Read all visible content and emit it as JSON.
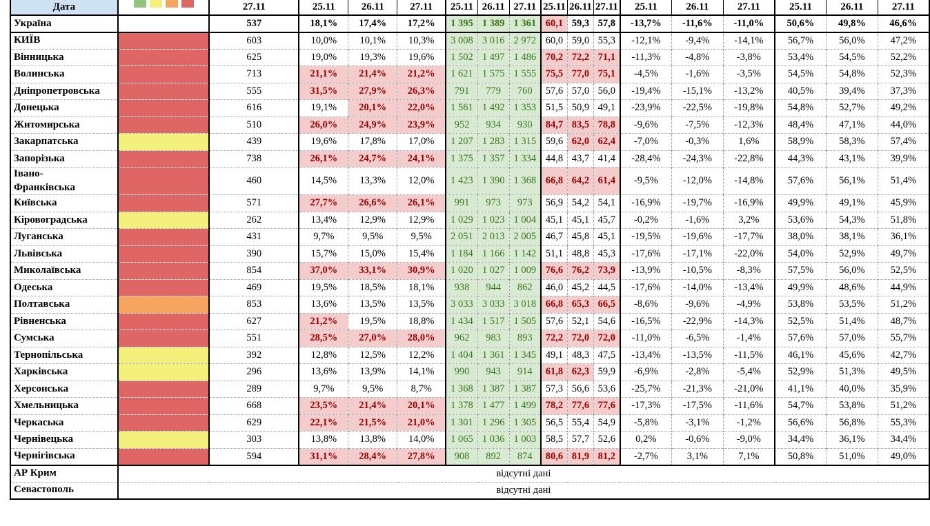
{
  "header": {
    "date_label": "Дата",
    "col_single": "27.11",
    "col_dates": [
      "25.11",
      "26.11",
      "27.11"
    ],
    "legend_colors": [
      "#93c47d",
      "#f3f07c",
      "#f6a45f",
      "#e06666"
    ]
  },
  "colors": {
    "status_red": "#e06666",
    "status_yellow": "#f3f07c",
    "status_orange": "#f6a45f",
    "green_bg": "#d9ead3",
    "green_text": "#38761d",
    "pink_bg": "#f4cccc",
    "pink_text": "#990000",
    "header_blue": "#cfe2f3"
  },
  "no_data_text": "відсутні дані",
  "rows": [
    {
      "name": "Україна",
      "color": null,
      "bold": true,
      "total": "537",
      "positivity": [
        "18,1%",
        "17,4%",
        "17,2%"
      ],
      "positivity_hl": [
        false,
        false,
        false
      ],
      "tests": [
        "1 395",
        "1 389",
        "1 361"
      ],
      "occupancy": [
        "60,1",
        "59,3",
        "57,8"
      ],
      "occupancy_hl": [
        true,
        false,
        false
      ],
      "dynamics": [
        "-13,7%",
        "-11,6%",
        "-11,0%"
      ],
      "share": [
        "50,6%",
        "49,8%",
        "46,6%"
      ]
    },
    {
      "name": "КИЇВ",
      "color": "red",
      "total": "603",
      "positivity": [
        "10,0%",
        "10,1%",
        "10,3%"
      ],
      "positivity_hl": [
        false,
        false,
        false
      ],
      "tests": [
        "3 008",
        "3 016",
        "2 972"
      ],
      "occupancy": [
        "60,0",
        "59,0",
        "55,3"
      ],
      "occupancy_hl": [
        false,
        false,
        false
      ],
      "dynamics": [
        "-12,1%",
        "-9,4%",
        "-14,1%"
      ],
      "share": [
        "56,7%",
        "56,0%",
        "47,2%"
      ]
    },
    {
      "name": "Вінницька",
      "color": "red",
      "total": "625",
      "positivity": [
        "19,0%",
        "19,3%",
        "19,6%"
      ],
      "positivity_hl": [
        false,
        false,
        false
      ],
      "tests": [
        "1 502",
        "1 497",
        "1 486"
      ],
      "occupancy": [
        "70,2",
        "72,2",
        "71,1"
      ],
      "occupancy_hl": [
        true,
        true,
        true
      ],
      "dynamics": [
        "-11,3%",
        "-4,8%",
        "-3,8%"
      ],
      "share": [
        "53,4%",
        "54,5%",
        "52,2%"
      ]
    },
    {
      "name": "Волинська",
      "color": "red",
      "total": "713",
      "positivity": [
        "21,1%",
        "21,4%",
        "21,2%"
      ],
      "positivity_hl": [
        true,
        true,
        true
      ],
      "tests": [
        "1 621",
        "1 575",
        "1 555"
      ],
      "occupancy": [
        "75,5",
        "77,0",
        "75,1"
      ],
      "occupancy_hl": [
        true,
        true,
        true
      ],
      "dynamics": [
        "-4,5%",
        "-1,6%",
        "-3,5%"
      ],
      "share": [
        "54,5%",
        "54,8%",
        "52,3%"
      ]
    },
    {
      "name": "Дніпропетровська",
      "color": "red",
      "total": "555",
      "positivity": [
        "31,5%",
        "27,9%",
        "26,3%"
      ],
      "positivity_hl": [
        true,
        true,
        true
      ],
      "tests": [
        "791",
        "779",
        "760"
      ],
      "occupancy": [
        "57,6",
        "57,0",
        "56,0"
      ],
      "occupancy_hl": [
        false,
        false,
        false
      ],
      "dynamics": [
        "-19,4%",
        "-15,1%",
        "-13,2%"
      ],
      "share": [
        "40,5%",
        "39,4%",
        "37,3%"
      ]
    },
    {
      "name": "Донецька",
      "color": "red",
      "total": "616",
      "positivity": [
        "19,1%",
        "20,1%",
        "22,0%"
      ],
      "positivity_hl": [
        false,
        true,
        true
      ],
      "tests": [
        "1 561",
        "1 492",
        "1 353"
      ],
      "occupancy": [
        "51,5",
        "50,9",
        "49,1"
      ],
      "occupancy_hl": [
        false,
        false,
        false
      ],
      "dynamics": [
        "-23,9%",
        "-22,5%",
        "-19,8%"
      ],
      "share": [
        "54,8%",
        "52,7%",
        "49,2%"
      ]
    },
    {
      "name": "Житомирська",
      "color": "red",
      "total": "510",
      "positivity": [
        "26,0%",
        "24,9%",
        "23,9%"
      ],
      "positivity_hl": [
        true,
        true,
        true
      ],
      "tests": [
        "952",
        "934",
        "930"
      ],
      "occupancy": [
        "84,7",
        "83,5",
        "78,8"
      ],
      "occupancy_hl": [
        true,
        true,
        true
      ],
      "dynamics": [
        "-9,6%",
        "-7,5%",
        "-12,3%"
      ],
      "share": [
        "48,4%",
        "47,1%",
        "44,0%"
      ]
    },
    {
      "name": "Закарпатська",
      "color": "yellow",
      "total": "439",
      "positivity": [
        "19,6%",
        "17,8%",
        "17,0%"
      ],
      "positivity_hl": [
        false,
        false,
        false
      ],
      "tests": [
        "1 207",
        "1 283",
        "1 315"
      ],
      "occupancy": [
        "59,6",
        "62,0",
        "62,4"
      ],
      "occupancy_hl": [
        false,
        true,
        true
      ],
      "dynamics": [
        "-7,0%",
        "-0,3%",
        "1,6%"
      ],
      "share": [
        "58,9%",
        "58,3%",
        "57,4%"
      ]
    },
    {
      "name": "Запорізька",
      "color": "red",
      "total": "738",
      "positivity": [
        "26,1%",
        "24,7%",
        "24,1%"
      ],
      "positivity_hl": [
        true,
        true,
        true
      ],
      "tests": [
        "1 375",
        "1 357",
        "1 334"
      ],
      "occupancy": [
        "44,8",
        "43,7",
        "41,4"
      ],
      "occupancy_hl": [
        false,
        false,
        false
      ],
      "dynamics": [
        "-28,4%",
        "-24,3%",
        "-22,8%"
      ],
      "share": [
        "44,3%",
        "43,1%",
        "39,9%"
      ]
    },
    {
      "name": "Івано-\nФранківська",
      "color": "red",
      "total": "460",
      "positivity": [
        "14,5%",
        "13,3%",
        "12,0%"
      ],
      "positivity_hl": [
        false,
        false,
        false
      ],
      "tests": [
        "1 423",
        "1 390",
        "1 368"
      ],
      "occupancy": [
        "66,8",
        "64,2",
        "61,4"
      ],
      "occupancy_hl": [
        true,
        true,
        true
      ],
      "dynamics": [
        "-9,5%",
        "-12,0%",
        "-14,8%"
      ],
      "share": [
        "57,6%",
        "56,1%",
        "51,4%"
      ]
    },
    {
      "name": "Київська",
      "color": "red",
      "total": "571",
      "positivity": [
        "27,7%",
        "26,6%",
        "26,1%"
      ],
      "positivity_hl": [
        true,
        true,
        true
      ],
      "tests": [
        "991",
        "973",
        "973"
      ],
      "occupancy": [
        "56,9",
        "54,2",
        "54,1"
      ],
      "occupancy_hl": [
        false,
        false,
        false
      ],
      "dynamics": [
        "-16,9%",
        "-19,7%",
        "-16,9%"
      ],
      "share": [
        "49,9%",
        "49,1%",
        "45,9%"
      ]
    },
    {
      "name": "Кіровоградська",
      "color": "yellow",
      "total": "262",
      "positivity": [
        "13,4%",
        "12,9%",
        "12,9%"
      ],
      "positivity_hl": [
        false,
        false,
        false
      ],
      "tests": [
        "1 029",
        "1 023",
        "1 004"
      ],
      "occupancy": [
        "45,1",
        "45,1",
        "45,7"
      ],
      "occupancy_hl": [
        false,
        false,
        false
      ],
      "dynamics": [
        "-0,2%",
        "-1,6%",
        "3,2%"
      ],
      "share": [
        "53,6%",
        "54,3%",
        "51,8%"
      ]
    },
    {
      "name": "Луганська",
      "color": "red",
      "total": "431",
      "positivity": [
        "9,7%",
        "9,5%",
        "9,5%"
      ],
      "positivity_hl": [
        false,
        false,
        false
      ],
      "tests": [
        "2 051",
        "2 013",
        "2 005"
      ],
      "occupancy": [
        "46,7",
        "45,8",
        "45,1"
      ],
      "occupancy_hl": [
        false,
        false,
        false
      ],
      "dynamics": [
        "-19,5%",
        "-19,6%",
        "-17,7%"
      ],
      "share": [
        "38,0%",
        "38,1%",
        "36,1%"
      ]
    },
    {
      "name": "Львівська",
      "color": "red",
      "total": "390",
      "positivity": [
        "15,7%",
        "15,0%",
        "15,4%"
      ],
      "positivity_hl": [
        false,
        false,
        false
      ],
      "tests": [
        "1 184",
        "1 166",
        "1 142"
      ],
      "occupancy": [
        "51,1",
        "48,8",
        "45,3"
      ],
      "occupancy_hl": [
        false,
        false,
        false
      ],
      "dynamics": [
        "-17,6%",
        "-17,1%",
        "-22,0%"
      ],
      "share": [
        "54,0%",
        "52,9%",
        "49,7%"
      ]
    },
    {
      "name": "Миколаївська",
      "color": "red",
      "total": "854",
      "positivity": [
        "37,0%",
        "33,1%",
        "30,9%"
      ],
      "positivity_hl": [
        true,
        true,
        true
      ],
      "tests": [
        "1 020",
        "1 027",
        "1 009"
      ],
      "occupancy": [
        "76,6",
        "76,2",
        "73,9"
      ],
      "occupancy_hl": [
        true,
        true,
        true
      ],
      "dynamics": [
        "-13,9%",
        "-10,5%",
        "-8,3%"
      ],
      "share": [
        "57,5%",
        "56,0%",
        "52,5%"
      ]
    },
    {
      "name": "Одеська",
      "color": "red",
      "total": "469",
      "positivity": [
        "19,5%",
        "18,5%",
        "18,1%"
      ],
      "positivity_hl": [
        false,
        false,
        false
      ],
      "tests": [
        "938",
        "944",
        "862"
      ],
      "occupancy": [
        "46,0",
        "45,2",
        "44,5"
      ],
      "occupancy_hl": [
        false,
        false,
        false
      ],
      "dynamics": [
        "-17,6%",
        "-14,0%",
        "-13,4%"
      ],
      "share": [
        "49,9%",
        "48,6%",
        "44,9%"
      ]
    },
    {
      "name": "Полтавська",
      "color": "orange",
      "total": "853",
      "positivity": [
        "13,6%",
        "13,5%",
        "13,5%"
      ],
      "positivity_hl": [
        false,
        false,
        false
      ],
      "tests": [
        "3 033",
        "3 033",
        "3 018"
      ],
      "occupancy": [
        "66,8",
        "65,3",
        "66,5"
      ],
      "occupancy_hl": [
        true,
        true,
        true
      ],
      "dynamics": [
        "-8,6%",
        "-9,6%",
        "-4,9%"
      ],
      "share": [
        "53,8%",
        "53,5%",
        "51,2%"
      ]
    },
    {
      "name": "Рівненська",
      "color": "red",
      "total": "627",
      "positivity": [
        "21,2%",
        "19,5%",
        "18,8%"
      ],
      "positivity_hl": [
        true,
        false,
        false
      ],
      "tests": [
        "1 434",
        "1 517",
        "1 505"
      ],
      "occupancy": [
        "57,6",
        "52,1",
        "54,6"
      ],
      "occupancy_hl": [
        false,
        false,
        false
      ],
      "dynamics": [
        "-16,5%",
        "-22,9%",
        "-14,3%"
      ],
      "share": [
        "52,5%",
        "51,4%",
        "48,7%"
      ]
    },
    {
      "name": "Сумська",
      "color": "red",
      "total": "551",
      "positivity": [
        "28,5%",
        "27,0%",
        "28,0%"
      ],
      "positivity_hl": [
        true,
        true,
        true
      ],
      "tests": [
        "962",
        "983",
        "893"
      ],
      "occupancy": [
        "72,2",
        "72,0",
        "72,0"
      ],
      "occupancy_hl": [
        true,
        true,
        true
      ],
      "dynamics": [
        "-11,0%",
        "-6,5%",
        "-1,4%"
      ],
      "share": [
        "57,6%",
        "57,0%",
        "55,7%"
      ]
    },
    {
      "name": "Тернопільська",
      "color": "yellow",
      "total": "392",
      "positivity": [
        "12,8%",
        "12,5%",
        "12,2%"
      ],
      "positivity_hl": [
        false,
        false,
        false
      ],
      "tests": [
        "1 404",
        "1 361",
        "1 345"
      ],
      "occupancy": [
        "49,1",
        "48,3",
        "47,5"
      ],
      "occupancy_hl": [
        false,
        false,
        false
      ],
      "dynamics": [
        "-13,4%",
        "-13,5%",
        "-11,5%"
      ],
      "share": [
        "46,1%",
        "45,6%",
        "42,7%"
      ]
    },
    {
      "name": "Харківська",
      "color": "yellow",
      "total": "296",
      "positivity": [
        "13,6%",
        "13,9%",
        "14,1%"
      ],
      "positivity_hl": [
        false,
        false,
        false
      ],
      "tests": [
        "990",
        "943",
        "914"
      ],
      "occupancy": [
        "61,8",
        "62,3",
        "59,9"
      ],
      "occupancy_hl": [
        true,
        true,
        false
      ],
      "dynamics": [
        "-6,9%",
        "-2,8%",
        "-5,4%"
      ],
      "share": [
        "52,9%",
        "51,3%",
        "49,5%"
      ]
    },
    {
      "name": "Херсонська",
      "color": "red",
      "total": "289",
      "positivity": [
        "9,7%",
        "9,5%",
        "8,7%"
      ],
      "positivity_hl": [
        false,
        false,
        false
      ],
      "tests": [
        "1 368",
        "1 387",
        "1 387"
      ],
      "occupancy": [
        "57,3",
        "56,6",
        "53,6"
      ],
      "occupancy_hl": [
        false,
        false,
        false
      ],
      "dynamics": [
        "-25,7%",
        "-21,3%",
        "-21,0%"
      ],
      "share": [
        "41,1%",
        "40,0%",
        "35,9%"
      ]
    },
    {
      "name": "Хмельницька",
      "color": "red",
      "total": "668",
      "positivity": [
        "23,5%",
        "21,4%",
        "20,1%"
      ],
      "positivity_hl": [
        true,
        true,
        true
      ],
      "tests": [
        "1 378",
        "1 477",
        "1 499"
      ],
      "occupancy": [
        "78,2",
        "77,6",
        "77,6"
      ],
      "occupancy_hl": [
        true,
        true,
        true
      ],
      "dynamics": [
        "-17,3%",
        "-17,5%",
        "-11,6%"
      ],
      "share": [
        "54,7%",
        "53,8%",
        "51,2%"
      ]
    },
    {
      "name": "Черкаська",
      "color": "red",
      "total": "629",
      "positivity": [
        "22,1%",
        "21,5%",
        "21,0%"
      ],
      "positivity_hl": [
        true,
        true,
        true
      ],
      "tests": [
        "1 301",
        "1 296",
        "1 305"
      ],
      "occupancy": [
        "56,5",
        "55,4",
        "54,9"
      ],
      "occupancy_hl": [
        false,
        false,
        false
      ],
      "dynamics": [
        "-5,8%",
        "-3,1%",
        "-1,2%"
      ],
      "share": [
        "56,6%",
        "56,8%",
        "55,3%"
      ]
    },
    {
      "name": "Чернівецька",
      "color": "yellow",
      "total": "303",
      "positivity": [
        "13,8%",
        "13,8%",
        "14,0%"
      ],
      "positivity_hl": [
        false,
        false,
        false
      ],
      "tests": [
        "1 065",
        "1 036",
        "1 003"
      ],
      "occupancy": [
        "58,5",
        "57,7",
        "52,6"
      ],
      "occupancy_hl": [
        false,
        false,
        false
      ],
      "dynamics": [
        "0,2%",
        "-0,6%",
        "-9,0%"
      ],
      "share": [
        "34,4%",
        "36,1%",
        "34,4%"
      ]
    },
    {
      "name": "Чернігівська",
      "color": "red",
      "total": "594",
      "positivity": [
        "31,1%",
        "28,4%",
        "27,8%"
      ],
      "positivity_hl": [
        true,
        true,
        true
      ],
      "tests": [
        "908",
        "892",
        "874"
      ],
      "occupancy": [
        "80,6",
        "81,9",
        "81,2"
      ],
      "occupancy_hl": [
        true,
        true,
        true
      ],
      "dynamics": [
        "-2,7%",
        "3,1%",
        "7,1%"
      ],
      "share": [
        "50,8%",
        "51,0%",
        "49,0%"
      ]
    }
  ],
  "no_data_rows": [
    {
      "name": "АР Крим"
    },
    {
      "name": "Севастополь"
    }
  ]
}
